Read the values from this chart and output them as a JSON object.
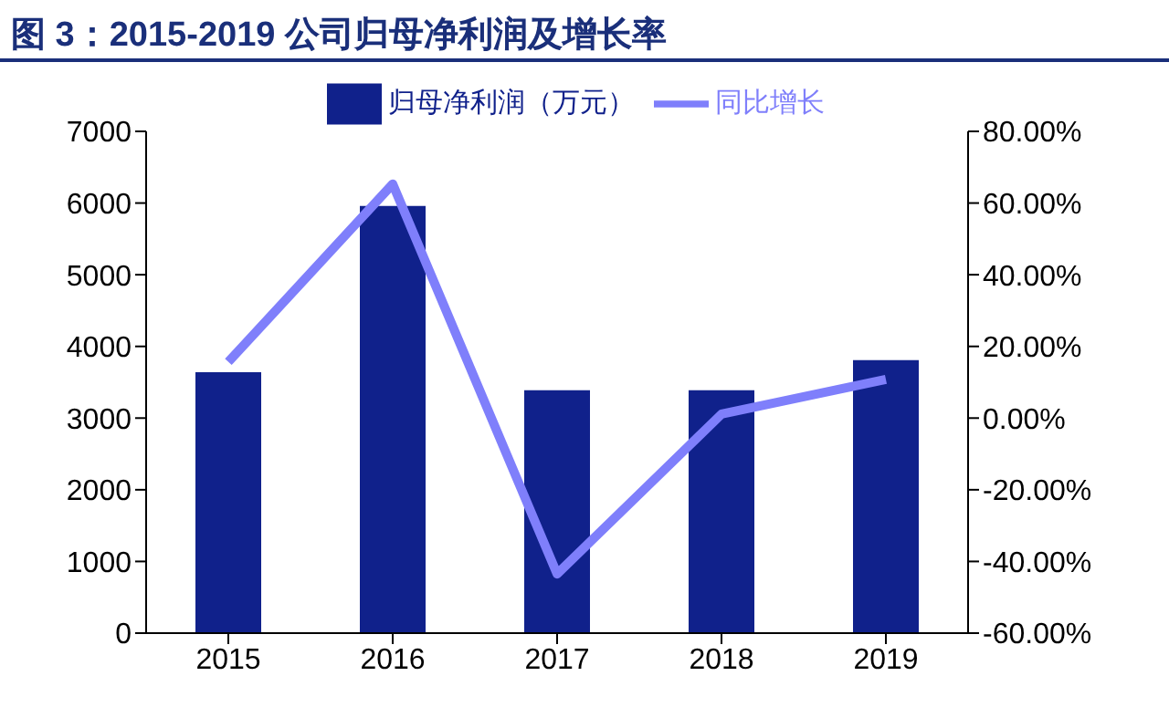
{
  "chart_data": {
    "type": "bar",
    "title": "图 3：2015-2019 公司归母净利润及增长率",
    "categories": [
      "2015",
      "2016",
      "2017",
      "2018",
      "2019"
    ],
    "series": [
      {
        "name": "归母净利润（万元）",
        "color": "#10218b",
        "values": [
          3640,
          5960,
          3390,
          3390,
          3810
        ]
      },
      {
        "name": "同比增长",
        "type": "line",
        "axis": "y2",
        "color": "#7f7ffb",
        "values": [
          15.7,
          65.3,
          -43.5,
          1.1,
          10.8
        ]
      }
    ],
    "ylim": [
      0,
      7000
    ],
    "yticks": [
      0,
      1000,
      2000,
      3000,
      4000,
      5000,
      6000,
      7000
    ],
    "y2lim": [
      -60,
      80
    ],
    "y2ticks": [
      {
        "value": -60,
        "label": "-60.00%"
      },
      {
        "value": -40,
        "label": "-40.00%"
      },
      {
        "value": -20,
        "label": "-20.00%"
      },
      {
        "value": 0,
        "label": "0.00%"
      },
      {
        "value": 20,
        "label": "20.00%"
      },
      {
        "value": 40,
        "label": "40.00%"
      },
      {
        "value": 60,
        "label": "60.00%"
      },
      {
        "value": 80,
        "label": "80.00%"
      }
    ],
    "grid": false,
    "legend": "top",
    "marker": "none",
    "line_style": "solid"
  }
}
